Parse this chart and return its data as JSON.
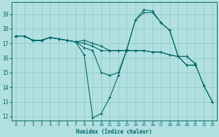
{
  "bg_color": "#b2e0e0",
  "grid_color": "#85c8c8",
  "line_color": "#006666",
  "xlabel": "Humidex (Indice chaleur)",
  "xlim": [
    -0.5,
    23.5
  ],
  "ylim": [
    11.7,
    19.8
  ],
  "yticks": [
    12,
    13,
    14,
    15,
    16,
    17,
    18,
    19
  ],
  "xticks": [
    0,
    1,
    2,
    3,
    4,
    5,
    6,
    7,
    8,
    9,
    10,
    11,
    12,
    13,
    14,
    15,
    16,
    17,
    18,
    19,
    20,
    21,
    22,
    23
  ],
  "series": [
    {
      "x": [
        0,
        1,
        2,
        3,
        4,
        5,
        6,
        7,
        8,
        9,
        10,
        11,
        12,
        13,
        14,
        15,
        16,
        17,
        18,
        19,
        20,
        21,
        22,
        23
      ],
      "y": [
        17.5,
        17.5,
        17.2,
        17.2,
        17.4,
        17.3,
        17.2,
        17.1,
        17.0,
        16.8,
        16.5,
        16.5,
        16.5,
        16.5,
        16.5,
        16.5,
        16.4,
        16.4,
        16.2,
        16.1,
        16.1,
        15.6,
        14.1,
        13.0
      ]
    },
    {
      "x": [
        0,
        1,
        2,
        3,
        4,
        5,
        6,
        7,
        8,
        9,
        10,
        11,
        12,
        13,
        14,
        15,
        16,
        17,
        18,
        19,
        20,
        21
      ],
      "y": [
        17.5,
        17.5,
        17.2,
        17.2,
        17.4,
        17.3,
        17.2,
        17.1,
        16.2,
        11.9,
        12.2,
        13.3,
        14.8,
        16.6,
        18.6,
        19.1,
        19.1,
        18.4,
        17.9,
        16.1,
        15.5,
        15.5
      ]
    },
    {
      "x": [
        0,
        1,
        2,
        3,
        4,
        5,
        6,
        7,
        8,
        9,
        10,
        11,
        12,
        13,
        14,
        15,
        16,
        17,
        18,
        19,
        20,
        21
      ],
      "y": [
        17.5,
        17.5,
        17.2,
        17.2,
        17.4,
        17.3,
        17.2,
        17.1,
        16.7,
        16.5,
        15.0,
        14.8,
        15.0,
        16.6,
        18.6,
        19.3,
        19.2,
        18.4,
        17.9,
        16.1,
        15.5,
        15.5
      ]
    },
    {
      "x": [
        0,
        1,
        2,
        3,
        4,
        5,
        6,
        7,
        8,
        9,
        10,
        11,
        12,
        13,
        14,
        15,
        16,
        17,
        18,
        19,
        20,
        21,
        22,
        23
      ],
      "y": [
        17.5,
        17.5,
        17.2,
        17.2,
        17.4,
        17.3,
        17.2,
        17.1,
        17.2,
        17.0,
        16.8,
        16.5,
        16.5,
        16.5,
        16.5,
        16.5,
        16.4,
        16.4,
        16.2,
        16.1,
        16.1,
        15.6,
        14.1,
        13.0
      ]
    }
  ]
}
